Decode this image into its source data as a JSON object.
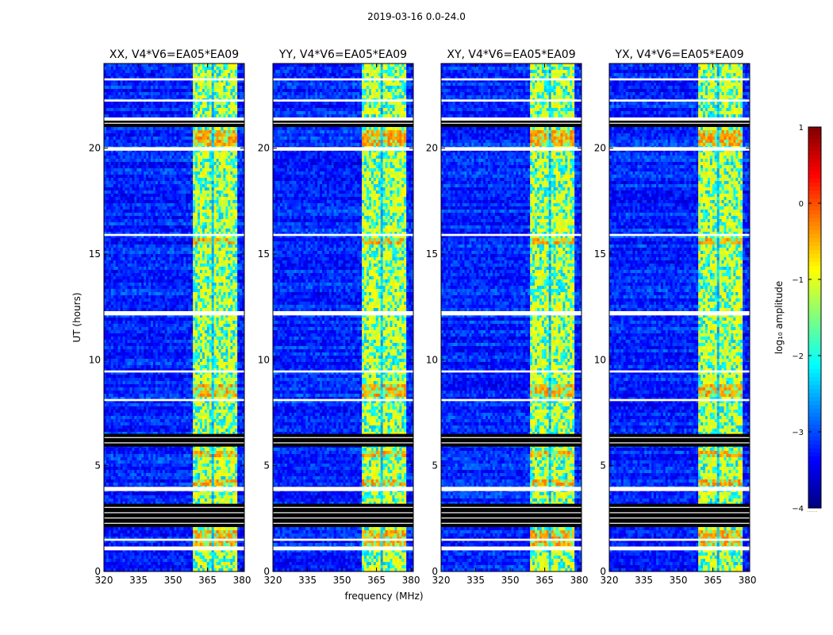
{
  "suptitle": "2019-03-16 0.0-24.0",
  "xlabel": "frequency (MHz)",
  "ylabel": "UT (hours)",
  "colorbar": {
    "label": "log₁₀ amplitude",
    "range": [
      -4,
      1
    ],
    "ticks": [
      1,
      0,
      -1,
      -2,
      -3,
      -4
    ],
    "tick_labels": [
      "1",
      "0",
      "−1",
      "−2",
      "−3",
      "−4"
    ],
    "footer": "......",
    "colormap": [
      "#00007f",
      "#0000ff",
      "#007fff",
      "#00ffff",
      "#7fff7f",
      "#ffff00",
      "#ff7f00",
      "#ff0000",
      "#7f0000"
    ]
  },
  "chart_data": {
    "type": "heatmap",
    "xlim": [
      320,
      381
    ],
    "ylim": [
      0,
      24
    ],
    "x_ticks": [
      320,
      335,
      350,
      365,
      380
    ],
    "x_tick_labels": [
      "320",
      "335",
      "350",
      "365",
      "380"
    ],
    "y_ticks": [
      0,
      5,
      10,
      15,
      20
    ],
    "y_tick_labels": [
      "0",
      "5",
      "10",
      "15",
      "20"
    ],
    "panels": [
      {
        "title": "XX, V4*V6=EA05*EA09"
      },
      {
        "title": "YY, V4*V6=EA05*EA09"
      },
      {
        "title": "XY, V4*V6=EA05*EA09"
      },
      {
        "title": "YX, V4*V6=EA05*EA09"
      }
    ],
    "signal_band_mhz": [
      358.5,
      377.5
    ],
    "signal_subbands_mhz": [
      [
        358.5,
        362.6
      ],
      [
        363.2,
        367.0
      ],
      [
        367.6,
        371.4
      ],
      [
        372.1,
        377.5
      ]
    ],
    "background_log10": -3.2,
    "signal_log10": -1.0,
    "flagged_blank_ut": [
      [
        1.0,
        1.18
      ],
      [
        1.45,
        1.55
      ],
      [
        3.8,
        4.0
      ],
      [
        8.05,
        8.15
      ],
      [
        9.4,
        9.5
      ],
      [
        12.1,
        12.3
      ],
      [
        15.85,
        15.95
      ],
      [
        19.88,
        20.05
      ],
      [
        21.3,
        21.45
      ],
      [
        22.2,
        22.3
      ],
      [
        23.2,
        23.3
      ]
    ],
    "flagged_missing_ut": [
      [
        2.1,
        3.2
      ],
      [
        5.9,
        6.5
      ],
      [
        21.0,
        21.3
      ]
    ],
    "bright_ut": [
      [
        1.2,
        1.9
      ],
      [
        4.05,
        4.4
      ],
      [
        5.45,
        5.75
      ],
      [
        8.2,
        8.8
      ],
      [
        20.1,
        20.8
      ],
      [
        15.5,
        15.8
      ]
    ]
  }
}
